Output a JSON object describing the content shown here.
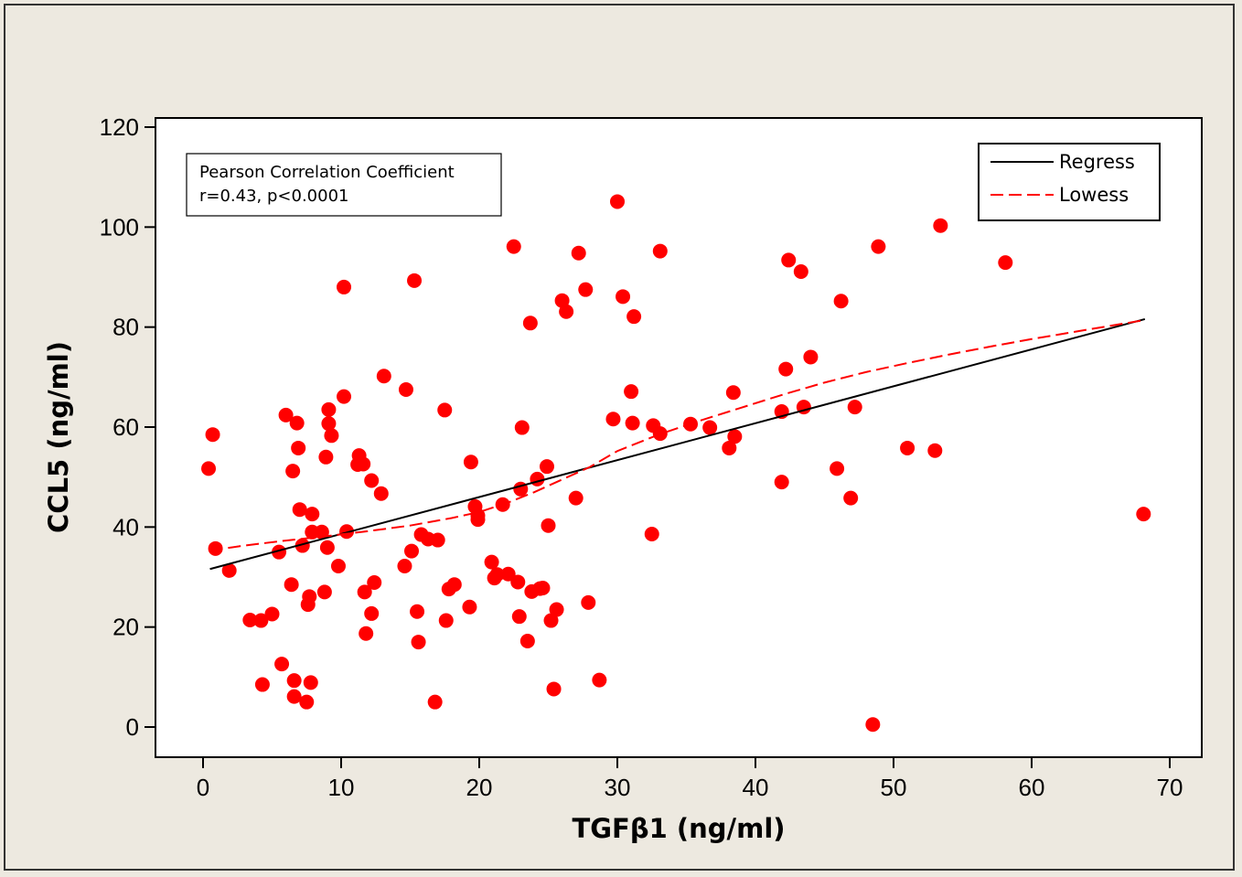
{
  "chart_data": {
    "type": "scatter",
    "xlabel": "TGFβ1 (ng/ml)",
    "ylabel": "CCL5 (ng/ml)",
    "xlim": [
      -4,
      72
    ],
    "ylim": [
      -6,
      122
    ],
    "x_ticks": [
      0,
      10,
      20,
      30,
      40,
      50,
      60,
      70
    ],
    "y_ticks": [
      0,
      20,
      40,
      60,
      80,
      100,
      120
    ],
    "grid": false,
    "legend_position": "top-right",
    "annotation": {
      "line1": "Pearson Correlation Coefficient",
      "line2": "r=0.43, p<0.0001"
    },
    "legend": [
      {
        "label": "Regress",
        "style": "solid",
        "color": "#000000"
      },
      {
        "label": "Lowess",
        "style": "dashed",
        "color": "#ff0000"
      }
    ],
    "point_color": "#ff0000",
    "points": [
      [
        0.4,
        51.7
      ],
      [
        0.7,
        58.5
      ],
      [
        0.9,
        35.7
      ],
      [
        1.9,
        31.3
      ],
      [
        3.4,
        21.4
      ],
      [
        4.2,
        21.3
      ],
      [
        4.3,
        8.5
      ],
      [
        5.0,
        22.6
      ],
      [
        5.5,
        35.0
      ],
      [
        5.7,
        12.6
      ],
      [
        6.0,
        62.4
      ],
      [
        6.4,
        28.5
      ],
      [
        6.5,
        51.2
      ],
      [
        6.6,
        9.3
      ],
      [
        6.6,
        6.1
      ],
      [
        6.8,
        60.8
      ],
      [
        6.9,
        55.8
      ],
      [
        7.0,
        43.5
      ],
      [
        7.2,
        36.3
      ],
      [
        7.5,
        5.0
      ],
      [
        7.6,
        24.5
      ],
      [
        7.7,
        26.1
      ],
      [
        7.8,
        8.9
      ],
      [
        7.9,
        42.6
      ],
      [
        7.9,
        39.0
      ],
      [
        8.6,
        39.0
      ],
      [
        8.8,
        27.0
      ],
      [
        8.9,
        54.0
      ],
      [
        9.0,
        35.9
      ],
      [
        9.1,
        63.5
      ],
      [
        9.1,
        60.7
      ],
      [
        9.3,
        58.3
      ],
      [
        9.8,
        32.2
      ],
      [
        10.2,
        66.1
      ],
      [
        10.2,
        88.0
      ],
      [
        10.4,
        39.1
      ],
      [
        11.2,
        52.5
      ],
      [
        11.3,
        54.3
      ],
      [
        11.6,
        52.6
      ],
      [
        11.7,
        27.0
      ],
      [
        11.8,
        18.7
      ],
      [
        12.2,
        49.3
      ],
      [
        12.2,
        22.7
      ],
      [
        12.4,
        28.9
      ],
      [
        12.9,
        46.7
      ],
      [
        13.1,
        70.2
      ],
      [
        14.6,
        32.2
      ],
      [
        14.7,
        67.5
      ],
      [
        15.1,
        35.2
      ],
      [
        15.3,
        89.3
      ],
      [
        15.5,
        23.1
      ],
      [
        15.6,
        17.0
      ],
      [
        15.8,
        38.5
      ],
      [
        16.3,
        37.6
      ],
      [
        16.8,
        5.0
      ],
      [
        17.0,
        37.4
      ],
      [
        17.5,
        63.4
      ],
      [
        17.6,
        21.3
      ],
      [
        17.8,
        27.6
      ],
      [
        18.2,
        28.5
      ],
      [
        19.3,
        24.0
      ],
      [
        19.4,
        53.0
      ],
      [
        19.7,
        44.1
      ],
      [
        19.9,
        41.5
      ],
      [
        19.9,
        42.3
      ],
      [
        20.9,
        33.0
      ],
      [
        21.1,
        29.8
      ],
      [
        21.3,
        30.5
      ],
      [
        21.7,
        44.5
      ],
      [
        22.1,
        30.6
      ],
      [
        22.5,
        96.1
      ],
      [
        22.8,
        29.0
      ],
      [
        22.9,
        22.1
      ],
      [
        23.0,
        47.6
      ],
      [
        23.1,
        59.9
      ],
      [
        23.5,
        17.2
      ],
      [
        23.7,
        80.8
      ],
      [
        23.8,
        27.1
      ],
      [
        24.2,
        49.6
      ],
      [
        24.4,
        27.7
      ],
      [
        24.6,
        27.8
      ],
      [
        24.9,
        52.1
      ],
      [
        25.0,
        40.3
      ],
      [
        25.2,
        21.3
      ],
      [
        25.4,
        7.6
      ],
      [
        25.6,
        23.5
      ],
      [
        26.0,
        85.3
      ],
      [
        26.3,
        83.1
      ],
      [
        27.0,
        45.8
      ],
      [
        27.2,
        94.8
      ],
      [
        27.7,
        87.5
      ],
      [
        27.9,
        24.9
      ],
      [
        28.7,
        9.4
      ],
      [
        29.7,
        61.6
      ],
      [
        30.0,
        105.1
      ],
      [
        30.4,
        86.1
      ],
      [
        31.0,
        67.1
      ],
      [
        31.1,
        60.8
      ],
      [
        31.2,
        82.1
      ],
      [
        32.5,
        38.6
      ],
      [
        32.6,
        60.3
      ],
      [
        33.1,
        95.2
      ],
      [
        33.1,
        58.7
      ],
      [
        35.3,
        60.6
      ],
      [
        36.7,
        59.9
      ],
      [
        38.1,
        55.8
      ],
      [
        38.4,
        66.9
      ],
      [
        38.5,
        58.1
      ],
      [
        41.9,
        49.0
      ],
      [
        41.9,
        63.1
      ],
      [
        42.2,
        71.6
      ],
      [
        42.4,
        93.4
      ],
      [
        43.3,
        91.1
      ],
      [
        43.5,
        64.0
      ],
      [
        44.0,
        74.0
      ],
      [
        45.9,
        51.7
      ],
      [
        46.2,
        85.2
      ],
      [
        46.9,
        45.8
      ],
      [
        47.2,
        64.0
      ],
      [
        48.5,
        0.5
      ],
      [
        48.9,
        96.1
      ],
      [
        51.0,
        55.8
      ],
      [
        53.0,
        55.3
      ],
      [
        53.4,
        100.3
      ],
      [
        58.1,
        92.9
      ],
      [
        68.1,
        42.6
      ]
    ],
    "regression": {
      "x": [
        0.5,
        68.2
      ],
      "y": [
        31.6,
        81.6
      ]
    },
    "lowess": {
      "x": [
        0.5,
        3,
        6,
        9,
        12,
        15,
        18,
        20,
        22,
        24,
        26,
        28,
        30,
        33,
        36,
        39,
        42,
        45,
        48,
        51,
        54,
        57,
        60,
        63,
        66,
        68.2
      ],
      "y": [
        35.3,
        36.3,
        37.3,
        38.2,
        39.2,
        40.3,
        41.8,
        43.0,
        44.8,
        47.0,
        49.5,
        52.0,
        55.2,
        58.5,
        61.3,
        63.9,
        66.5,
        68.9,
        71.0,
        72.8,
        74.5,
        76.1,
        77.6,
        79.0,
        80.4,
        81.4
      ]
    }
  }
}
